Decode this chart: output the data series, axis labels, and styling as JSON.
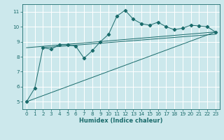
{
  "xlabel": "Humidex (Indice chaleur)",
  "bg_color": "#cce8ec",
  "grid_color": "#ffffff",
  "line_color": "#1a6b6b",
  "xlim": [
    -0.5,
    23.5
  ],
  "ylim": [
    4.5,
    11.5
  ],
  "xticks": [
    0,
    1,
    2,
    3,
    4,
    5,
    6,
    7,
    8,
    9,
    10,
    11,
    12,
    13,
    14,
    15,
    16,
    17,
    18,
    19,
    20,
    21,
    22,
    23
  ],
  "yticks": [
    5,
    6,
    7,
    8,
    9,
    10,
    11
  ],
  "series1_x": [
    0,
    1,
    2,
    3,
    4,
    5,
    6,
    7,
    8,
    9,
    10,
    11,
    12,
    13,
    14,
    15,
    16,
    17,
    18,
    19,
    20,
    21,
    22,
    23
  ],
  "series1_y": [
    5.0,
    5.9,
    8.6,
    8.5,
    8.8,
    8.8,
    8.7,
    7.9,
    8.4,
    9.0,
    9.5,
    10.7,
    11.1,
    10.5,
    10.2,
    10.1,
    10.3,
    10.0,
    9.8,
    9.9,
    10.1,
    10.05,
    10.0,
    9.65
  ],
  "trend1_x": [
    0,
    23
  ],
  "trend1_y": [
    5.0,
    9.65
  ],
  "trend2_x": [
    0,
    23
  ],
  "trend2_y": [
    8.6,
    9.65
  ],
  "trend3_x": [
    2,
    23
  ],
  "trend3_y": [
    8.6,
    9.5
  ],
  "xlabel_fontsize": 6.0,
  "tick_fontsize": 5.2,
  "linewidth": 0.7,
  "markersize": 2.2
}
